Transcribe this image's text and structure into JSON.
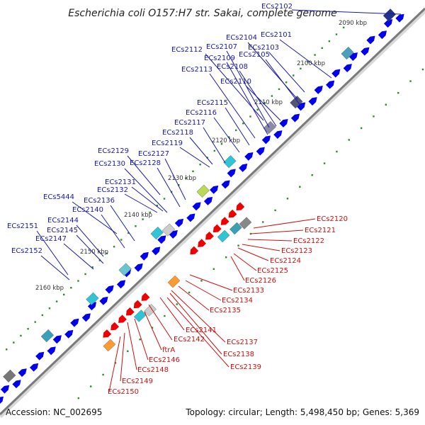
{
  "title": "Escherichia coli O157:H7 str. Sakai, complete genome",
  "footer": {
    "accession": "Accession: NC_002695",
    "summary": "Topology: circular; Length: 5,498,450 bp; Genes: 5,369"
  },
  "colors": {
    "backbone": "#888888",
    "forward_gene": "#0000ee",
    "reverse_gene": "#ee0000",
    "forward_label": "#1a1aa6",
    "reverse_label": "#cc1111",
    "tick_dots": "#2d8a2d"
  },
  "kbp_ticks": [
    "2090 kbp",
    "2100 kbp",
    "2110 kbp",
    "2120 kbp",
    "2130 kbp",
    "2140 kbp",
    "2150 kbp",
    "2160 kbp"
  ],
  "forward_labels": [
    "ECs2102",
    "ECs2101",
    "ECs2104",
    "ECs2103",
    "ECs2112",
    "ECs2107",
    "ECs2105",
    "ECs2109",
    "ECs2108",
    "ECs2113",
    "ECs2110",
    "ECs2115",
    "ECs2116",
    "ECs2117",
    "ECs2118",
    "ECs2119",
    "ECs2129",
    "ECs2127",
    "ECs2128",
    "ECs2130",
    "ECs2131",
    "ECs2132",
    "ECs5444",
    "ECs2136",
    "ECs2140",
    "ECs2144",
    "ECs2145",
    "ECs2151",
    "ECs2147",
    "ECs2152"
  ],
  "reverse_labels": [
    "ECs2120",
    "ECs2121",
    "ECs2122",
    "ECs2123",
    "ECs2124",
    "ECs2125",
    "ECs2126",
    "ECs2133",
    "ECs2134",
    "ECs2135",
    "ECs2141",
    "ECs2142",
    "ftrA",
    "ECs2137",
    "ECs2138",
    "ECs2139",
    "ECs2146",
    "ECs2148",
    "ECs2149",
    "ECs2150"
  ]
}
